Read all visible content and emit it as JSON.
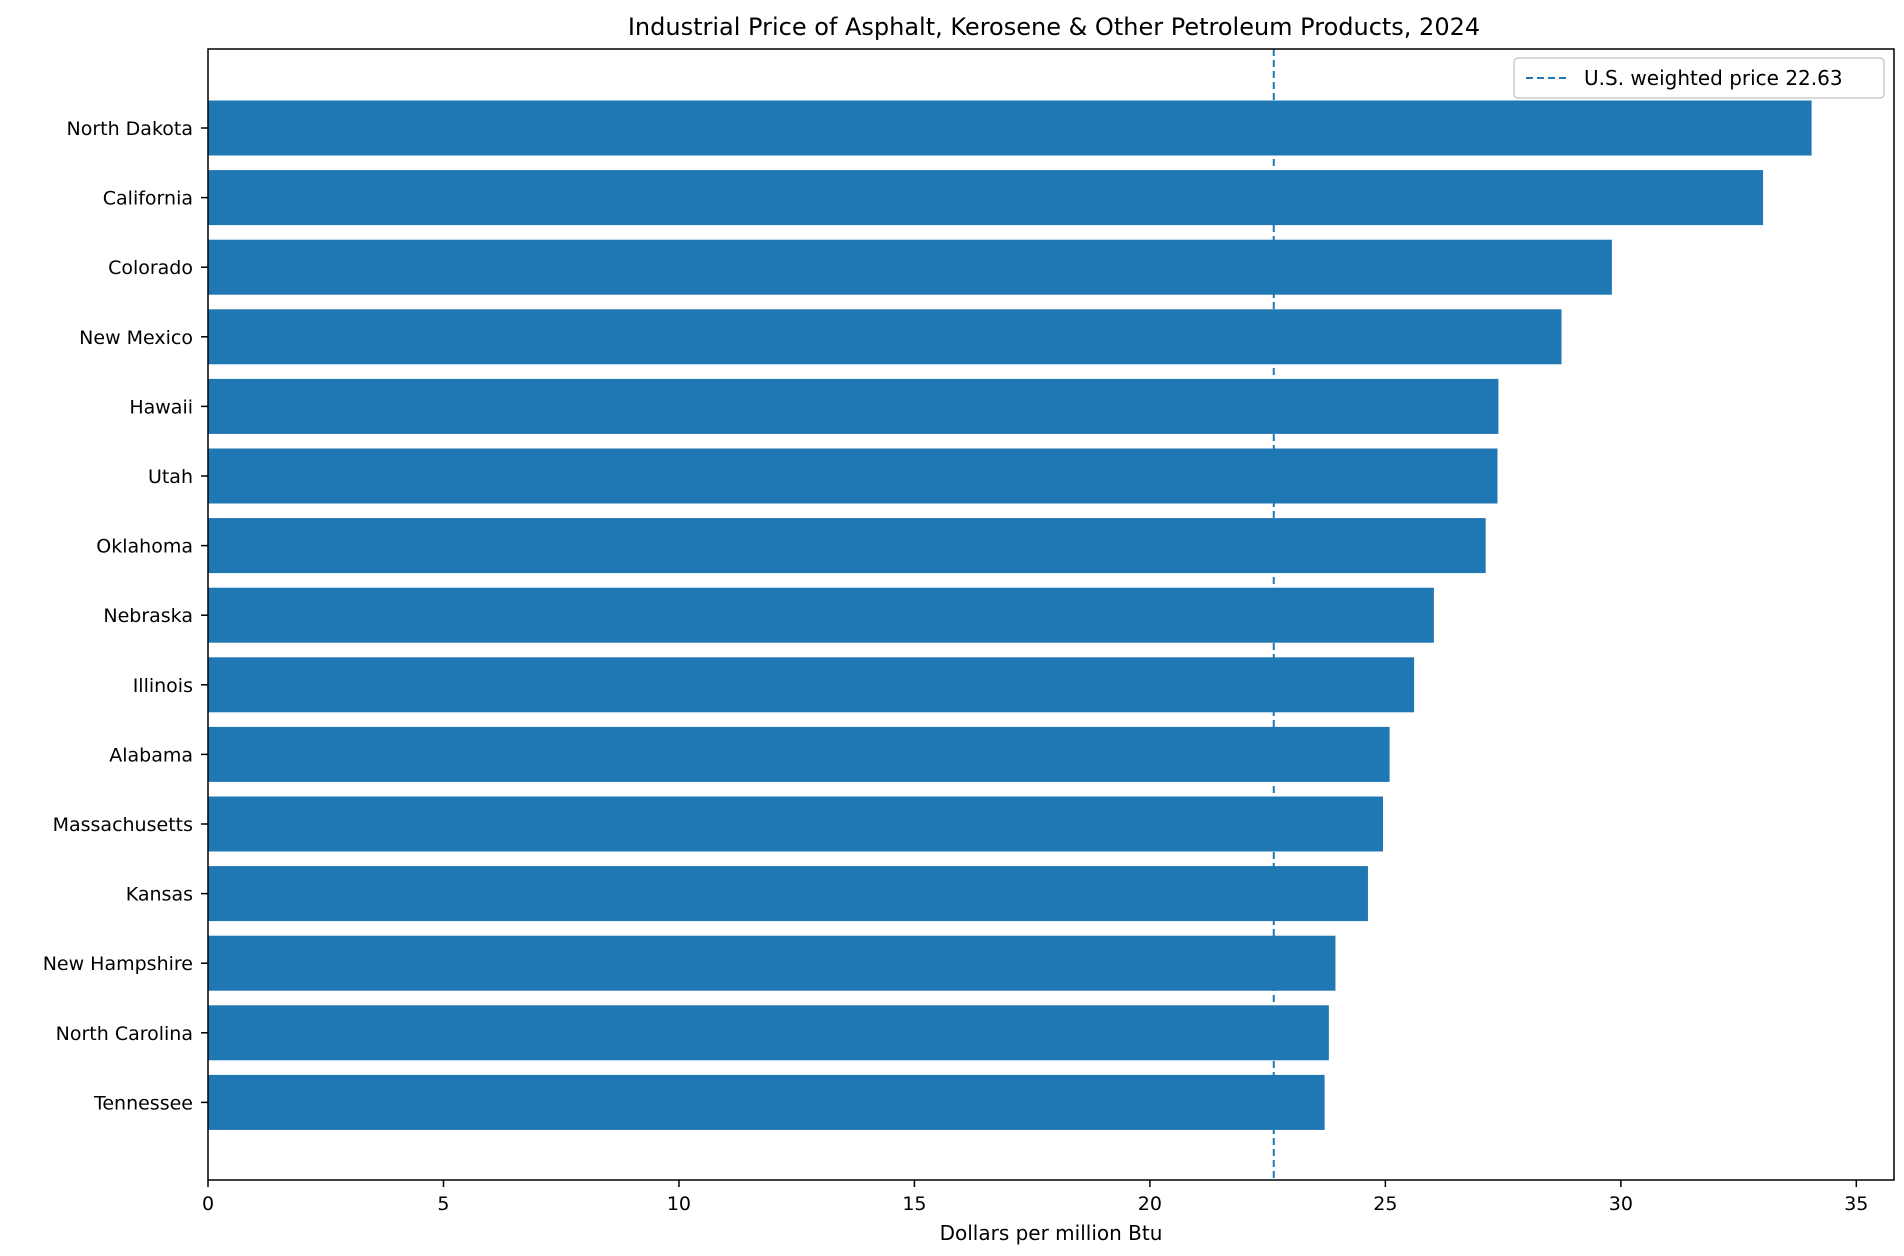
{
  "chart_data": {
    "type": "bar",
    "orientation": "horizontal",
    "title": "Industrial Price of Asphalt, Kerosene & Other Petroleum Products, 2024",
    "xlabel": "Dollars per million Btu",
    "ylabel": "",
    "categories": [
      "North Dakota",
      "California",
      "Colorado",
      "New Mexico",
      "Hawaii",
      "Utah",
      "Oklahoma",
      "Nebraska",
      "Illinois",
      "Alabama",
      "Massachusetts",
      "Kansas",
      "New Hampshire",
      "North Carolina",
      "Tennessee"
    ],
    "values": [
      34.05,
      33.02,
      29.81,
      28.74,
      27.4,
      27.38,
      27.13,
      26.03,
      25.61,
      25.09,
      24.95,
      24.63,
      23.94,
      23.8,
      23.71
    ],
    "xlim": [
      0,
      35.8
    ],
    "xticks": [
      0,
      5,
      10,
      15,
      20,
      25,
      30,
      35
    ],
    "reference_line": {
      "value": 22.63,
      "style": "dashed",
      "label": "U.S. weighted price 22.63"
    },
    "legend": {
      "position": "top-right",
      "entries": [
        "U.S. weighted price 22.63"
      ]
    },
    "grid": false,
    "colors": {
      "bar": "#1f77b4",
      "reference_line": "#1f77b4",
      "axis": "#000000"
    }
  }
}
